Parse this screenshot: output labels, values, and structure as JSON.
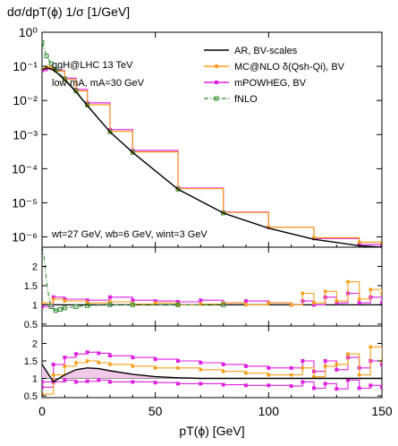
{
  "chart_data": {
    "type": "line",
    "title": "dσ/dpT(ϕ) 1/σ  [1/GeV]",
    "annotations": {
      "process": "ggH@LHC 13 TeV",
      "mass": "low-mA, mA=30 GeV",
      "widths": "wt=27 GeV, wb=6 GeV, wint=3 GeV"
    },
    "legend": {
      "position": "top-right",
      "entries": [
        "AR, BV-scales",
        "MC@NLO δ(Qsh-Qi), BV",
        "mPOWHEG, BV",
        "fNLO"
      ]
    },
    "colors": {
      "ar": "#000000",
      "mcnlo": "#f5a01a",
      "powheg": "#e020e0",
      "fnlo": "#2e8b2e",
      "band": "#f2c8e8"
    },
    "xlabel": "pT(ϕ) [GeV]",
    "xlim": [
      0,
      150
    ],
    "xticks": [
      0,
      50,
      100,
      150
    ],
    "main": {
      "yscale": "log",
      "ylim": [
        5e-07,
        1
      ],
      "yticks": [
        1,
        0.1,
        0.01,
        0.001,
        0.0001,
        1e-05,
        1e-06
      ],
      "yticklabels": [
        "10⁰",
        "10⁻¹",
        "10⁻²",
        "10⁻³",
        "10⁻⁴",
        "10⁻⁵",
        "10⁻⁶"
      ],
      "x": [
        0,
        2,
        4,
        6,
        10,
        15,
        20,
        30,
        40,
        60,
        80,
        100,
        120,
        140,
        150
      ],
      "series": [
        {
          "name": "AR, BV-scales",
          "values": [
            0.08,
            0.09,
            0.085,
            0.07,
            0.04,
            0.018,
            0.007,
            0.0012,
            0.0003,
            2.5e-05,
            5e-06,
            1.8e-06,
            8.5e-07,
            5.5e-07,
            5e-07
          ]
        },
        {
          "name": "MC@NLO δ(Qsh-Qi), BV",
          "values": [
            0.085,
            0.095,
            0.088,
            0.072,
            0.041,
            0.019,
            0.0075,
            0.00125,
            0.00031,
            2.6e-05,
            5.2e-06,
            1.9e-06,
            9.5e-07,
            7e-07,
            6.5e-07
          ]
        },
        {
          "name": "mPOWHEG, BV",
          "values": [
            0.075,
            0.085,
            0.088,
            0.075,
            0.045,
            0.021,
            0.0085,
            0.0014,
            0.00034,
            2.7e-05,
            5.3e-06,
            1.9e-06,
            9e-07,
            6e-07,
            5.5e-07
          ]
        },
        {
          "name": "fNLO",
          "values": [
            0.5,
            0.2,
            0.12,
            0.08,
            0.043,
            0.019,
            0.0073,
            0.0012,
            0.0003,
            2.5e-05,
            5e-06
          ]
        }
      ],
      "fnlo_x": [
        0,
        2,
        4,
        6,
        10,
        15,
        20,
        30,
        40,
        60,
        80
      ]
    },
    "ratio1": {
      "ylim": [
        0.45,
        2.5
      ],
      "yticks": [
        0.5,
        1,
        1.5,
        2
      ],
      "x": [
        0,
        5,
        10,
        20,
        30,
        40,
        50,
        60,
        70,
        80,
        90,
        100,
        110,
        115,
        120,
        125,
        130,
        135,
        140,
        145,
        150
      ],
      "series": [
        {
          "name": "MC@NLO δ(Qsh-Qi), BV",
          "values": [
            1.05,
            1.15,
            1.1,
            1.05,
            1.08,
            1.02,
            1.05,
            1.0,
            1.02,
            1.05,
            1.0,
            1.05,
            1.0,
            1.3,
            1.05,
            1.35,
            1.1,
            1.6,
            1.15,
            1.4,
            1.3
          ]
        },
        {
          "name": "mPOWHEG, BV",
          "values": [
            0.95,
            1.2,
            1.15,
            1.12,
            1.2,
            1.12,
            1.1,
            1.08,
            1.12,
            1.05,
            1.1,
            1.05,
            1.0,
            1.1,
            1.0,
            1.2,
            1.05,
            1.3,
            1.05,
            1.2,
            1.05
          ]
        },
        {
          "name": "fNLO",
          "x": [
            0,
            1,
            2,
            3,
            4,
            6,
            8,
            10,
            15,
            20,
            30,
            40,
            60,
            80
          ],
          "values": [
            2.5,
            2.2,
            1.6,
            1.2,
            0.95,
            0.85,
            0.88,
            0.92,
            0.95,
            0.98,
            1.0,
            1.0,
            1.0,
            1.0
          ]
        }
      ]
    },
    "ratio2": {
      "ylim": [
        0.45,
        2.5
      ],
      "yticks": [
        0.5,
        1,
        1.5,
        2
      ],
      "x": [
        0,
        5,
        10,
        15,
        20,
        25,
        30,
        40,
        50,
        60,
        70,
        80,
        90,
        100,
        110,
        115,
        120,
        125,
        130,
        135,
        140,
        145,
        150
      ],
      "ar_values": [
        1.4,
        0.9,
        1.1,
        1.25,
        1.3,
        1.28,
        1.22,
        1.12,
        1.05,
        1.02,
        1.0,
        1.0,
        1.0,
        1.0,
        1.0,
        1.0,
        1.0,
        1.0,
        1.0,
        1.0,
        1.0,
        1.0,
        1.0
      ],
      "series": [
        {
          "name": "MC@NLO δ(Qsh-Qi), BV",
          "values": [
            0.55,
            1.1,
            1.35,
            1.45,
            1.5,
            1.45,
            1.4,
            1.35,
            1.3,
            1.3,
            1.25,
            1.2,
            1.15,
            1.1,
            1.1,
            1.3,
            1.05,
            1.35,
            1.4,
            1.7,
            1.1,
            1.9,
            1.5
          ]
        },
        {
          "name": "mPOWHEG, BV",
          "values": [
            0.9,
            1.4,
            1.6,
            1.7,
            1.75,
            1.72,
            1.65,
            1.6,
            1.55,
            1.5,
            1.45,
            1.4,
            1.35,
            1.3,
            1.3,
            1.5,
            1.2,
            1.5,
            1.25,
            1.6,
            1.3,
            1.5,
            1.4
          ]
        },
        {
          "name": "mPOWHEG, BV (lower)",
          "values": [
            0.75,
            0.9,
            0.95,
            0.9,
            0.92,
            0.95,
            0.9,
            0.9,
            0.88,
            0.85,
            0.85,
            0.82,
            0.8,
            0.8,
            0.78,
            0.9,
            0.72,
            0.85,
            0.7,
            0.95,
            0.72,
            0.8,
            0.75
          ]
        }
      ]
    }
  }
}
